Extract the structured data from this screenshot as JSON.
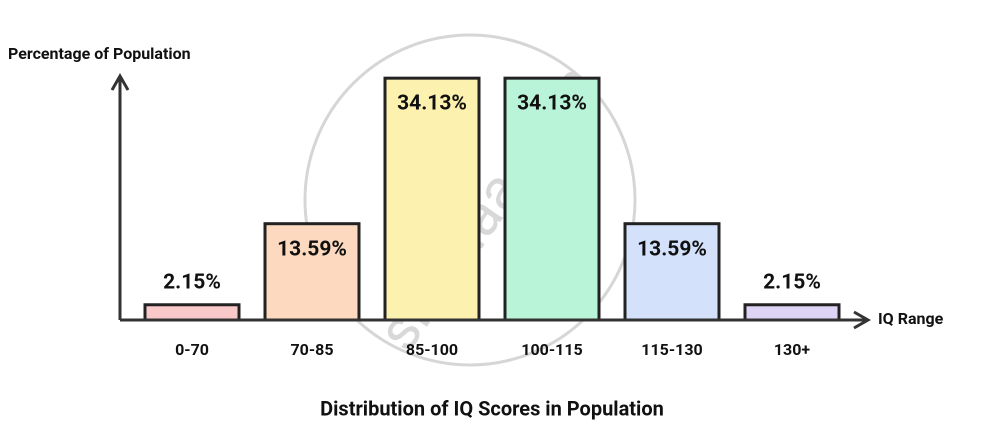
{
  "chart_data": {
    "type": "bar",
    "title": "Distribution of IQ Scores in Population",
    "x_label": "IQ Range",
    "y_label": "Percentage of Population",
    "watermark": "shaalaa.com",
    "categories": [
      "0-70",
      "70-85",
      "85-100",
      "100-115",
      "115-130",
      "130+"
    ],
    "values": [
      2.15,
      13.59,
      34.13,
      34.13,
      13.59,
      2.15
    ],
    "value_labels": [
      "2.15%",
      "13.59%",
      "34.13%",
      "34.13%",
      "13.59%",
      "2.15%"
    ],
    "colors": [
      "#f9c9c9",
      "#fcd9bf",
      "#fdf1b0",
      "#b9f4d9",
      "#d3e1fb",
      "#ddd4f5"
    ],
    "ylim": [
      0,
      35
    ],
    "grid": false
  }
}
